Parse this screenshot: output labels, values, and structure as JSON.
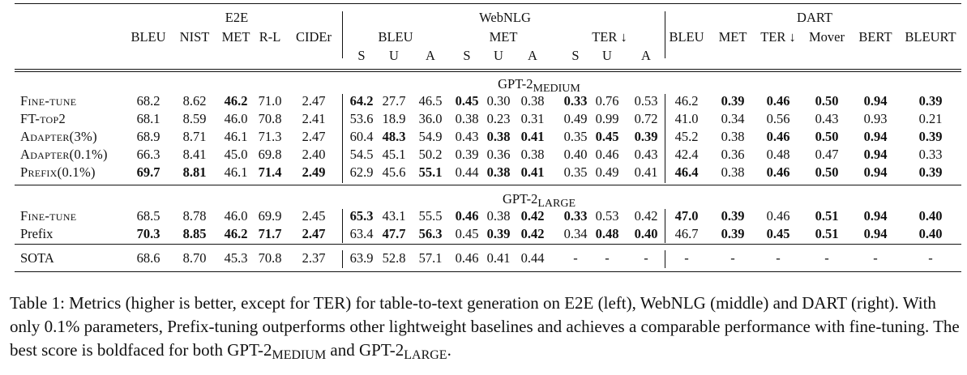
{
  "groups": [
    "E2E",
    "WebNLG",
    "DART"
  ],
  "e2e_metrics": [
    "BLEU",
    "NIST",
    "MET",
    "R-L",
    "CIDEr"
  ],
  "webnlg_metrics": [
    "BLEU",
    "MET",
    "TER ↓"
  ],
  "webnlg_sub": [
    "S",
    "U",
    "A"
  ],
  "dart_metrics": [
    "BLEU",
    "MET",
    "TER ↓",
    "Mover",
    "BERT",
    "BLEURT"
  ],
  "sections": [
    {
      "title_main": "GPT-2",
      "title_sub": "MEDIUM",
      "rows": [
        {
          "label": "Fine-tune",
          "small_caps": true,
          "e2e": [
            "68.2",
            "8.62",
            "46.2",
            "71.0",
            "2.47"
          ],
          "webnlg": [
            "64.2",
            "27.7",
            "46.5",
            "0.45",
            "0.30",
            "0.38",
            "0.33",
            "0.76",
            "0.53"
          ],
          "dart": [
            "46.2",
            "0.39",
            "0.46",
            "0.50",
            "0.94",
            "0.39"
          ],
          "bold": [
            2,
            5,
            8,
            11,
            15,
            16,
            17,
            18,
            19
          ]
        },
        {
          "label": "FT-top2",
          "small_caps": true,
          "e2e": [
            "68.1",
            "8.59",
            "46.0",
            "70.8",
            "2.41"
          ],
          "webnlg": [
            "53.6",
            "18.9",
            "36.0",
            "0.38",
            "0.23",
            "0.31",
            "0.49",
            "0.99",
            "0.72"
          ],
          "dart": [
            "41.0",
            "0.34",
            "0.56",
            "0.43",
            "0.93",
            "0.21"
          ],
          "bold": []
        },
        {
          "label": "Adapter(3%)",
          "small_caps": true,
          "e2e": [
            "68.9",
            "8.71",
            "46.1",
            "71.3",
            "2.47"
          ],
          "webnlg": [
            "60.4",
            "48.3",
            "54.9",
            "0.43",
            "0.38",
            "0.41",
            "0.35",
            "0.45",
            "0.39"
          ],
          "dart": [
            "45.2",
            "0.38",
            "0.46",
            "0.50",
            "0.94",
            "0.39"
          ],
          "bold": [
            6,
            9,
            10,
            12,
            13,
            16,
            17,
            18,
            19
          ]
        },
        {
          "label": "Adapter(0.1%)",
          "small_caps": true,
          "e2e": [
            "66.3",
            "8.41",
            "45.0",
            "69.8",
            "2.40"
          ],
          "webnlg": [
            "54.5",
            "45.1",
            "50.2",
            "0.39",
            "0.36",
            "0.38",
            "0.40",
            "0.46",
            "0.43"
          ],
          "dart": [
            "42.4",
            "0.36",
            "0.48",
            "0.47",
            "0.94",
            "0.33"
          ],
          "bold": [
            18
          ]
        },
        {
          "label": "Prefix(0.1%)",
          "small_caps": true,
          "e2e": [
            "69.7",
            "8.81",
            "46.1",
            "71.4",
            "2.49"
          ],
          "webnlg": [
            "62.9",
            "45.6",
            "55.1",
            "0.44",
            "0.38",
            "0.41",
            "0.35",
            "0.49",
            "0.41"
          ],
          "dart": [
            "46.4",
            "0.38",
            "0.46",
            "0.50",
            "0.94",
            "0.39"
          ],
          "bold": [
            0,
            1,
            3,
            4,
            7,
            9,
            10,
            14,
            16,
            17,
            18,
            19
          ]
        }
      ]
    },
    {
      "title_main": "GPT-2",
      "title_sub": "LARGE",
      "rows": [
        {
          "label": "Fine-tune",
          "small_caps": true,
          "e2e": [
            "68.5",
            "8.78",
            "46.0",
            "69.9",
            "2.45"
          ],
          "webnlg": [
            "65.3",
            "43.1",
            "55.5",
            "0.46",
            "0.38",
            "0.42",
            "0.33",
            "0.53",
            "0.42"
          ],
          "dart": [
            "47.0",
            "0.39",
            "0.46",
            "0.51",
            "0.94",
            "0.40"
          ],
          "bold": [
            5,
            8,
            10,
            11,
            14,
            15,
            17,
            18,
            19
          ]
        },
        {
          "label": "Prefix",
          "small_caps": false,
          "e2e": [
            "70.3",
            "8.85",
            "46.2",
            "71.7",
            "2.47"
          ],
          "webnlg": [
            "63.4",
            "47.7",
            "56.3",
            "0.45",
            "0.39",
            "0.42",
            "0.34",
            "0.48",
            "0.40"
          ],
          "dart": [
            "46.7",
            "0.39",
            "0.45",
            "0.51",
            "0.94",
            "0.40"
          ],
          "bold": [
            0,
            1,
            2,
            3,
            4,
            6,
            7,
            9,
            10,
            12,
            13,
            15,
            16,
            17,
            18,
            19
          ]
        }
      ]
    }
  ],
  "sota": {
    "label": "SOTA",
    "e2e": [
      "68.6",
      "8.70",
      "45.3",
      "70.8",
      "2.37"
    ],
    "webnlg": [
      "63.9",
      "52.8",
      "57.1",
      "0.46",
      "0.41",
      "0.44",
      "-",
      "-",
      "-"
    ],
    "dart": [
      "-",
      "-",
      "-",
      "-",
      "-",
      "-"
    ]
  },
  "caption": {
    "p1": "Table 1:  Metrics (higher is better, except for TER) for table-to-text generation on E2E (left), WebNLG (middle) and DART (right). With only ",
    "pct": "0.1%",
    "p2": " parameters, Prefix-tuning outperforms other lightweight baselines and achieves a comparable performance with fine-tuning. The best score is boldfaced for both GPT-2",
    "sub1": "MEDIUM",
    "p3": " and GPT-2",
    "sub2": "LARGE",
    "p4": "."
  }
}
